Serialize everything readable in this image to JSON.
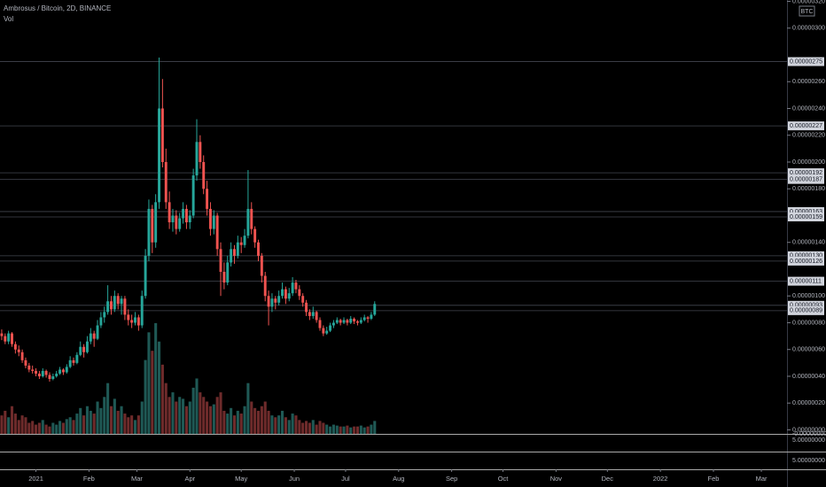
{
  "chart_data": {
    "type": "candlestick",
    "title": "Ambrosus / Bitcoin, 2D, BINANCE",
    "volume_title": "Vol",
    "currency": "BTC",
    "up_color": "#26a69a",
    "down_color": "#ef5350",
    "volume_up_color": "#1f5955",
    "volume_down_color": "#6e2b2b",
    "ylim": [
      -3e-08,
      3.21e-06
    ],
    "volume_ylim": [
      0,
      470
    ],
    "xlim": [
      -0.5,
      229.5
    ],
    "yticks": [
      {
        "value": 3.2e-06,
        "label": "0.00000320"
      },
      {
        "value": 3e-06,
        "label": "0.00000300"
      },
      {
        "value": 2.6e-06,
        "label": "0.00000260"
      },
      {
        "value": 2.4e-06,
        "label": "0.00000240"
      },
      {
        "value": 2.2e-06,
        "label": "0.00000220"
      },
      {
        "value": 2e-06,
        "label": "0.00000200"
      },
      {
        "value": 1.8e-06,
        "label": "0.00000180"
      },
      {
        "value": 1.4e-06,
        "label": "0.00000140"
      },
      {
        "value": 1e-06,
        "label": "0.00000100"
      },
      {
        "value": 8e-07,
        "label": "0.00000080"
      },
      {
        "value": 6e-07,
        "label": "0.00000060"
      },
      {
        "value": 4e-07,
        "label": "0.00000040"
      },
      {
        "value": 2e-07,
        "label": "0.00000020"
      },
      {
        "value": 0,
        "label": "0.00000000"
      }
    ],
    "levels": [
      {
        "value": 2.75e-06,
        "label": "0.00000275"
      },
      {
        "value": 2.27e-06,
        "label": "0.00000227"
      },
      {
        "value": 1.92e-06,
        "label": "0.00000192"
      },
      {
        "value": 1.87e-06,
        "label": "0.00000187"
      },
      {
        "value": 1.63e-06,
        "label": "0.00000163"
      },
      {
        "value": 1.59e-06,
        "label": "0.00000159"
      },
      {
        "value": 1.3e-06,
        "label": "0.00000130"
      },
      {
        "value": 1.26e-06,
        "label": "0.00000126"
      },
      {
        "value": 1.11e-06,
        "label": "0.00000111"
      },
      {
        "value": 9.3e-07,
        "label": "0.00000093"
      },
      {
        "value": 8.9e-07,
        "label": "0.00000089"
      }
    ],
    "pane_labels": [
      "-0.00000000",
      "5.00000000",
      "5.00000000"
    ],
    "xticks": [
      {
        "value": 10,
        "label": "2021"
      },
      {
        "value": 25.5,
        "label": "Feb"
      },
      {
        "value": 39.5,
        "label": "Mar"
      },
      {
        "value": 55,
        "label": "Apr"
      },
      {
        "value": 70,
        "label": "May"
      },
      {
        "value": 85.5,
        "label": "Jun"
      },
      {
        "value": 100.5,
        "label": "Jul"
      },
      {
        "value": 116,
        "label": "Aug"
      },
      {
        "value": 131.5,
        "label": "Sep"
      },
      {
        "value": 146.5,
        "label": "Oct"
      },
      {
        "value": 162,
        "label": "Nov"
      },
      {
        "value": 177,
        "label": "Dec"
      },
      {
        "value": 192.5,
        "label": "2022"
      },
      {
        "value": 208,
        "label": "Feb"
      },
      {
        "value": 222,
        "label": "Mar"
      }
    ],
    "candles": [
      [
        7.2e-07,
        7.5e-07,
        6.7e-07,
        7e-07
      ],
      [
        7e-07,
        7.2e-07,
        6.4e-07,
        6.6e-07
      ],
      [
        6.6e-07,
        7.4e-07,
        6.4e-07,
        7.2e-07
      ],
      [
        7.2e-07,
        7.3e-07,
        6.2e-07,
        6.4e-07
      ],
      [
        6.4e-07,
        6.6e-07,
        5.7e-07,
        6e-07
      ],
      [
        6e-07,
        6.3e-07,
        5.5e-07,
        5.8e-07
      ],
      [
        5.8e-07,
        6e-07,
        5e-07,
        5.2e-07
      ],
      [
        5.2e-07,
        5.4e-07,
        4.6e-07,
        4.8e-07
      ],
      [
        4.8e-07,
        5e-07,
        4.3e-07,
        4.5e-07
      ],
      [
        4.5e-07,
        4.8e-07,
        4.2e-07,
        4.4e-07
      ],
      [
        4.4e-07,
        4.6e-07,
        4e-07,
        4.2e-07
      ],
      [
        4.2e-07,
        4.4e-07,
        3.8e-07,
        4e-07
      ],
      [
        4e-07,
        4.6e-07,
        3.9e-07,
        4.4e-07
      ],
      [
        4.4e-07,
        4.5e-07,
        3.9e-07,
        4.1e-07
      ],
      [
        4.1e-07,
        4.3e-07,
        3.6e-07,
        3.8e-07
      ],
      [
        3.8e-07,
        4.2e-07,
        3.7e-07,
        4e-07
      ],
      [
        4e-07,
        4.4e-07,
        3.9e-07,
        4.2e-07
      ],
      [
        4.2e-07,
        4.7e-07,
        4.1e-07,
        4.5e-07
      ],
      [
        4.5e-07,
        4.6e-07,
        4.1e-07,
        4.3e-07
      ],
      [
        4.3e-07,
        4.9e-07,
        4.2e-07,
        4.7e-07
      ],
      [
        4.7e-07,
        5.5e-07,
        4.6e-07,
        5.2e-07
      ],
      [
        5.2e-07,
        5.4e-07,
        4.8e-07,
        5e-07
      ],
      [
        5e-07,
        5.8e-07,
        4.9e-07,
        5.6e-07
      ],
      [
        5.6e-07,
        6.6e-07,
        5.5e-07,
        6.2e-07
      ],
      [
        6.2e-07,
        6.4e-07,
        5.4e-07,
        5.8e-07
      ],
      [
        5.8e-07,
        7e-07,
        5.7e-07,
        6.6e-07
      ],
      [
        6.6e-07,
        7.6e-07,
        6.4e-07,
        7.2e-07
      ],
      [
        7.2e-07,
        7.4e-07,
        6.2e-07,
        6.8e-07
      ],
      [
        6.8e-07,
        8.2e-07,
        6.7e-07,
        7.8e-07
      ],
      [
        7.8e-07,
        8.8e-07,
        7.6e-07,
        8.4e-07
      ],
      [
        8.4e-07,
        9.2e-07,
        8e-07,
        8.8e-07
      ],
      [
        8.8e-07,
        1.08e-06,
        8.6e-07,
        9.6e-07
      ],
      [
        9.6e-07,
        1e-06,
        8.6e-07,
        9e-07
      ],
      [
        9e-07,
        1.04e-06,
        8.8e-07,
        1e-06
      ],
      [
        1e-06,
        1.02e-06,
        9e-07,
        9.4e-07
      ],
      [
        9.4e-07,
        1e-06,
        8.6e-07,
        9.8e-07
      ],
      [
        9.8e-07,
        1e-06,
        8.2e-07,
        8.6e-07
      ],
      [
        8.6e-07,
        9e-07,
        7.8e-07,
        8.2e-07
      ],
      [
        8.2e-07,
        8.6e-07,
        7.6e-07,
        8e-07
      ],
      [
        8e-07,
        8.8e-07,
        7.8e-07,
        8.4e-07
      ],
      [
        8.4e-07,
        8.6e-07,
        7.4e-07,
        7.8e-07
      ],
      [
        7.8e-07,
        1.04e-06,
        7.6e-07,
        1e-06
      ],
      [
        1e-06,
        1.35e-06,
        9.8e-07,
        1.3e-06
      ],
      [
        1.3e-06,
        1.72e-06,
        1.26e-06,
        1.65e-06
      ],
      [
        1.65e-06,
        1.68e-06,
        1.32e-06,
        1.4e-06
      ],
      [
        1.4e-06,
        1.76e-06,
        1.36e-06,
        1.7e-06
      ],
      [
        1.7e-06,
        2.78e-06,
        1.65e-06,
        2.4e-06
      ],
      [
        2.4e-06,
        2.62e-06,
        1.96e-06,
        2e-06
      ],
      [
        2e-06,
        2.1e-06,
        1.65e-06,
        1.7e-06
      ],
      [
        1.7e-06,
        1.78e-06,
        1.5e-06,
        1.55e-06
      ],
      [
        1.55e-06,
        1.65e-06,
        1.48e-06,
        1.6e-06
      ],
      [
        1.6e-06,
        1.64e-06,
        1.46e-06,
        1.5e-06
      ],
      [
        1.5e-06,
        1.62e-06,
        1.48e-06,
        1.58e-06
      ],
      [
        1.58e-06,
        1.7e-06,
        1.54e-06,
        1.65e-06
      ],
      [
        1.65e-06,
        1.68e-06,
        1.5e-06,
        1.55e-06
      ],
      [
        1.55e-06,
        1.64e-06,
        1.5e-06,
        1.6e-06
      ],
      [
        1.6e-06,
        1.95e-06,
        1.58e-06,
        1.9e-06
      ],
      [
        1.9e-06,
        2.32e-06,
        1.86e-06,
        2.15e-06
      ],
      [
        2.15e-06,
        2.2e-06,
        1.95e-06,
        2e-06
      ],
      [
        2e-06,
        2.05e-06,
        1.76e-06,
        1.8e-06
      ],
      [
        1.8e-06,
        1.86e-06,
        1.6e-06,
        1.65e-06
      ],
      [
        1.65e-06,
        1.7e-06,
        1.45e-06,
        1.5e-06
      ],
      [
        1.5e-06,
        1.64e-06,
        1.46e-06,
        1.6e-06
      ],
      [
        1.6e-06,
        1.62e-06,
        1.3e-06,
        1.35e-06
      ],
      [
        1.35e-06,
        1.4e-06,
        1e-06,
        1.18e-06
      ],
      [
        1.18e-06,
        1.25e-06,
        1.05e-06,
        1.1e-06
      ],
      [
        1.1e-06,
        1.3e-06,
        1.08e-06,
        1.25e-06
      ],
      [
        1.25e-06,
        1.4e-06,
        1.22e-06,
        1.35e-06
      ],
      [
        1.35e-06,
        1.38e-06,
        1.24e-06,
        1.3e-06
      ],
      [
        1.3e-06,
        1.45e-06,
        1.28e-06,
        1.4e-06
      ],
      [
        1.4e-06,
        1.44e-06,
        1.32e-06,
        1.38e-06
      ],
      [
        1.38e-06,
        1.5e-06,
        1.36e-06,
        1.45e-06
      ],
      [
        1.45e-06,
        1.94e-06,
        1.43e-06,
        1.65e-06
      ],
      [
        1.65e-06,
        1.7e-06,
        1.46e-06,
        1.5e-06
      ],
      [
        1.5e-06,
        1.52e-06,
        1.36e-06,
        1.4e-06
      ],
      [
        1.4e-06,
        1.42e-06,
        1.26e-06,
        1.3e-06
      ],
      [
        1.3e-06,
        1.32e-06,
        1.1e-06,
        1.15e-06
      ],
      [
        1.15e-06,
        1.18e-06,
        9.6e-07,
        1e-06
      ],
      [
        1e-06,
        1.04e-06,
        7.8e-07,
        9.2e-07
      ],
      [
        9.2e-07,
        1.02e-06,
        8.8e-07,
        9.8e-07
      ],
      [
        9.8e-07,
        1e-06,
        9e-07,
        9.5e-07
      ],
      [
        9.5e-07,
        1.04e-06,
        9.3e-07,
        1e-06
      ],
      [
        1e-06,
        1.1e-06,
        9.8e-07,
        1.05e-06
      ],
      [
        1.05e-06,
        1.07e-06,
        9.4e-07,
        9.8e-07
      ],
      [
        9.8e-07,
        1.06e-06,
        9.6e-07,
        1.02e-06
      ],
      [
        1.02e-06,
        1.14e-06,
        1e-06,
        1.1e-06
      ],
      [
        1.1e-06,
        1.12e-06,
        1.02e-06,
        1.05e-06
      ],
      [
        1.05e-06,
        1.08e-06,
        9.7e-07,
        1e-06
      ],
      [
        1e-06,
        1.02e-06,
        9.2e-07,
        9.5e-07
      ],
      [
        9.5e-07,
        9.7e-07,
        8.5e-07,
        8.8e-07
      ],
      [
        8.8e-07,
        9e-07,
        8.2e-07,
        8.5e-07
      ],
      [
        8.5e-07,
        9.2e-07,
        8.3e-07,
        8.8e-07
      ],
      [
        8.8e-07,
        8.9e-07,
        8e-07,
        8.2e-07
      ],
      [
        8.2e-07,
        8.4e-07,
        7.4e-07,
        7.6e-07
      ],
      [
        7.6e-07,
        7.8e-07,
        7e-07,
        7.2e-07
      ],
      [
        7.2e-07,
        7.7e-07,
        7.1e-07,
        7.4e-07
      ],
      [
        7.4e-07,
        8e-07,
        7.3e-07,
        7.8e-07
      ],
      [
        7.8e-07,
        8.2e-07,
        7.6e-07,
        8e-07
      ],
      [
        8e-07,
        8.4e-07,
        7.9e-07,
        8.2e-07
      ],
      [
        8.2e-07,
        8.3e-07,
        7.8e-07,
        8e-07
      ],
      [
        8e-07,
        8.4e-07,
        7.9e-07,
        8.2e-07
      ],
      [
        8.2e-07,
        8.3e-07,
        7.8e-07,
        8e-07
      ],
      [
        8e-07,
        8.5e-07,
        7.9e-07,
        8.3e-07
      ],
      [
        8.3e-07,
        8.4e-07,
        7.9e-07,
        8.1e-07
      ],
      [
        8.1e-07,
        8.2e-07,
        7.8e-07,
        8e-07
      ],
      [
        8e-07,
        8.4e-07,
        7.9e-07,
        8.2e-07
      ],
      [
        8.2e-07,
        8.6e-07,
        8.1e-07,
        8.4e-07
      ],
      [
        8.4e-07,
        8.5e-07,
        8e-07,
        8.3e-07
      ],
      [
        8.3e-07,
        8.8e-07,
        8.2e-07,
        8.6e-07
      ],
      [
        8.6e-07,
        9.6e-07,
        8.5e-07,
        9.4e-07
      ]
    ],
    "volumes": [
      20,
      25,
      18,
      30,
      22,
      15,
      20,
      18,
      12,
      14,
      10,
      12,
      15,
      10,
      8,
      12,
      10,
      14,
      12,
      16,
      18,
      15,
      22,
      28,
      20,
      30,
      25,
      22,
      35,
      28,
      40,
      55,
      30,
      38,
      25,
      30,
      22,
      18,
      20,
      15,
      20,
      35,
      80,
      110,
      90,
      120,
      100,
      75,
      55,
      40,
      45,
      35,
      40,
      38,
      30,
      35,
      50,
      60,
      45,
      40,
      35,
      30,
      32,
      40,
      45,
      25,
      22,
      28,
      20,
      25,
      22,
      30,
      55,
      35,
      28,
      25,
      30,
      35,
      25,
      20,
      18,
      20,
      25,
      18,
      15,
      22,
      20,
      15,
      12,
      14,
      12,
      15,
      10,
      14,
      12,
      10,
      8,
      10,
      9,
      8,
      8,
      9,
      7,
      8,
      8,
      9,
      7,
      8,
      10,
      14
    ]
  }
}
